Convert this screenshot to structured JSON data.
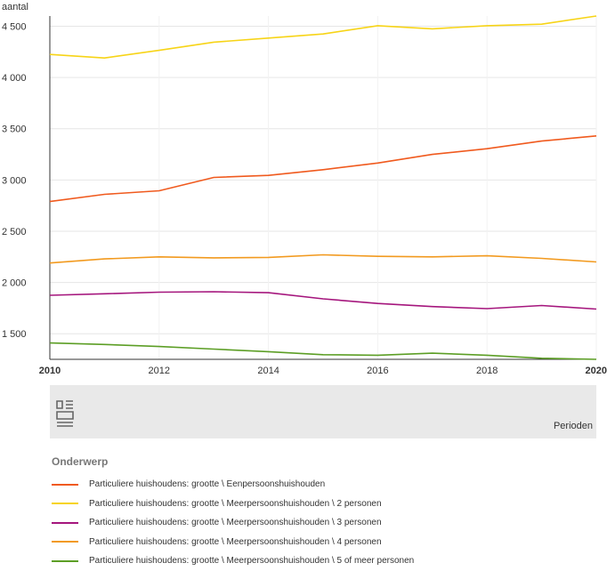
{
  "chart_data": {
    "type": "line",
    "ylabel": "aantal",
    "xlabel": "Perioden",
    "x": [
      2010,
      2011,
      2012,
      2013,
      2014,
      2015,
      2016,
      2017,
      2018,
      2019,
      2020
    ],
    "x_ticks": [
      "2010",
      "2012",
      "2014",
      "2016",
      "2018",
      "2020"
    ],
    "y_ticks": [
      "1 500",
      "2 000",
      "2 500",
      "3 000",
      "3 500",
      "4 000",
      "4 500"
    ],
    "y_tick_values": [
      1500,
      2000,
      2500,
      3000,
      3500,
      4000,
      4500
    ],
    "ylim": [
      1250,
      4600
    ],
    "grid": true,
    "legend_position": "bottom",
    "legend_title": "Onderwerp",
    "series": [
      {
        "name": "Particuliere huishoudens: grootte \\ Eenpersoonshuishouden",
        "color": "#f05a1e",
        "values": [
          2790,
          2860,
          2895,
          3025,
          3045,
          3100,
          3165,
          3250,
          3305,
          3380,
          3430
        ]
      },
      {
        "name": "Particuliere huishoudens: grootte \\ Meerpersoonshuishouden \\ 2 personen",
        "color": "#f7d417",
        "values": [
          4225,
          4190,
          4265,
          4345,
          4385,
          4425,
          4505,
          4475,
          4505,
          4520,
          4600
        ]
      },
      {
        "name": "Particuliere huishoudens: grootte \\ Meerpersoonshuishouden \\ 3 personen",
        "color": "#a5167d",
        "values": [
          1875,
          1890,
          1905,
          1910,
          1900,
          1840,
          1795,
          1765,
          1745,
          1775,
          1740
        ]
      },
      {
        "name": "Particuliere huishoudens: grootte \\ Meerpersoonshuishouden \\ 4 personen",
        "color": "#f29a1f",
        "values": [
          2190,
          2230,
          2250,
          2240,
          2245,
          2270,
          2255,
          2250,
          2260,
          2235,
          2200
        ]
      },
      {
        "name": "Particuliere huishoudens: grootte \\ Meerpersoonshuishouden \\ 5 of meer personen",
        "color": "#5c9e25",
        "values": [
          1410,
          1395,
          1375,
          1350,
          1325,
          1295,
          1290,
          1310,
          1290,
          1260,
          1250
        ]
      }
    ]
  }
}
